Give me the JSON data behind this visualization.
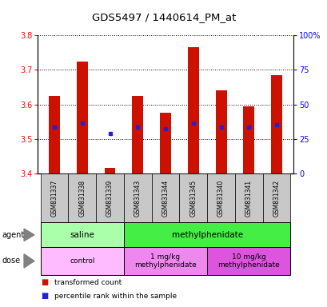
{
  "title": "GDS5497 / 1440614_PM_at",
  "samples": [
    "GSM831337",
    "GSM831338",
    "GSM831339",
    "GSM831343",
    "GSM831344",
    "GSM831345",
    "GSM831340",
    "GSM831341",
    "GSM831342"
  ],
  "bar_values": [
    3.625,
    3.725,
    3.415,
    3.625,
    3.575,
    3.765,
    3.64,
    3.595,
    3.685
  ],
  "bar_bottom": 3.4,
  "blue_dot_values": [
    3.535,
    3.545,
    3.515,
    3.535,
    3.53,
    3.545,
    3.535,
    3.535,
    3.54
  ],
  "ylim": [
    3.4,
    3.8
  ],
  "yticks": [
    3.4,
    3.5,
    3.6,
    3.7,
    3.8
  ],
  "right_yticks": [
    0,
    25,
    50,
    75,
    100
  ],
  "right_ylabels": [
    "0",
    "25",
    "50",
    "75",
    "100%"
  ],
  "bar_color": "#cc1100",
  "blue_color": "#2222cc",
  "agent_groups": [
    {
      "label": "saline",
      "start": 0,
      "end": 3,
      "color": "#aaffaa"
    },
    {
      "label": "methylphenidate",
      "start": 3,
      "end": 9,
      "color": "#44ee44"
    }
  ],
  "dose_groups": [
    {
      "label": "control",
      "start": 0,
      "end": 3,
      "color": "#ffbbff"
    },
    {
      "label": "1 mg/kg\nmethylphenidate",
      "start": 3,
      "end": 6,
      "color": "#ee88ee"
    },
    {
      "label": "10 mg/kg\nmethylphenidate",
      "start": 6,
      "end": 9,
      "color": "#dd55dd"
    }
  ],
  "legend_items": [
    {
      "label": "transformed count",
      "color": "#cc1100"
    },
    {
      "label": "percentile rank within the sample",
      "color": "#2222cc"
    }
  ],
  "bar_width": 0.4,
  "cell_bg": "#c8c8c8"
}
